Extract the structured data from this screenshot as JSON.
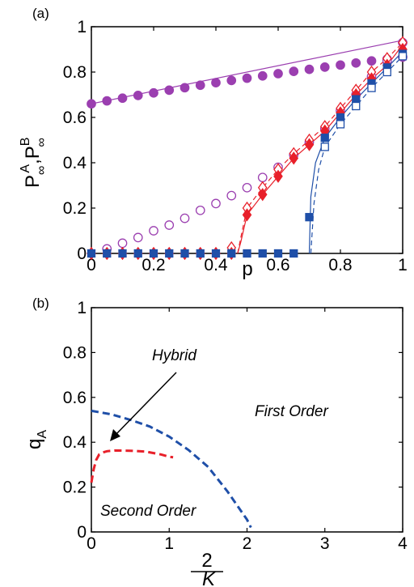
{
  "chart_data": [
    {
      "type": "line",
      "panel_label": "(a)",
      "xlabel": "p",
      "ylabel_main": "P",
      "ylabel_sub1": "∞",
      "ylabel_sup1": "A",
      "ylabel_comma": ",",
      "ylabel_sup2": "B",
      "ylabel_sub2": "∞",
      "xlim": [
        0,
        1
      ],
      "ylim": [
        0,
        1
      ],
      "xticks": [
        "0",
        "0.2",
        "0.4",
        "0.6",
        "0.8",
        "1"
      ],
      "yticks": [
        "0",
        "0.2",
        "0.4",
        "0.6",
        "0.8",
        "1"
      ],
      "colors": {
        "purple": "#9b3fb0",
        "red": "#e8202a",
        "blue": "#1f4fa8"
      },
      "series": [
        {
          "marker": "filled-circle",
          "color": "#9b3fb0",
          "line": "solid",
          "x": [
            0,
            0.05,
            0.1,
            0.15,
            0.2,
            0.25,
            0.3,
            0.35,
            0.4,
            0.45,
            0.5,
            0.55,
            0.6,
            0.65,
            0.7,
            0.75,
            0.8,
            0.85,
            0.9,
            0.95,
            1.0
          ],
          "y": [
            0.66,
            0.673,
            0.685,
            0.697,
            0.708,
            0.72,
            0.731,
            0.742,
            0.753,
            0.763,
            0.773,
            0.783,
            0.793,
            0.803,
            0.812,
            0.822,
            0.831,
            0.84,
            0.849,
            0.857,
            0.866
          ]
        },
        {
          "marker": "open-circle",
          "color": "#9b3fb0",
          "line": "solid",
          "x": [
            0.05,
            0.1,
            0.15,
            0.2,
            0.25,
            0.3,
            0.35,
            0.4,
            0.45,
            0.5,
            0.55,
            0.6,
            0.65,
            0.7,
            0.75,
            0.8,
            0.85,
            0.9,
            0.95,
            1.0
          ],
          "y": [
            0.02,
            0.045,
            0.07,
            0.1,
            0.125,
            0.155,
            0.19,
            0.22,
            0.255,
            0.29,
            0.335,
            0.38,
            0.435,
            0.49,
            0.55,
            0.63,
            0.7,
            0.78,
            0.85,
            0.93
          ]
        },
        {
          "marker": "open-diamond",
          "color": "#e8202a",
          "line": "solid",
          "x": [
            0,
            0.05,
            0.1,
            0.15,
            0.2,
            0.25,
            0.3,
            0.35,
            0.4,
            0.45,
            0.5,
            0.55,
            0.6,
            0.65,
            0.7,
            0.75,
            0.8,
            0.85,
            0.9,
            0.95,
            1.0
          ],
          "y": [
            0,
            0,
            0,
            0,
            0,
            0,
            0,
            0,
            0,
            0.025,
            0.2,
            0.29,
            0.37,
            0.44,
            0.5,
            0.56,
            0.64,
            0.72,
            0.8,
            0.86,
            0.93
          ]
        },
        {
          "marker": "filled-diamond",
          "color": "#e8202a",
          "line": "solid",
          "x": [
            0,
            0.05,
            0.1,
            0.15,
            0.2,
            0.25,
            0.3,
            0.35,
            0.4,
            0.45,
            0.5,
            0.55,
            0.6,
            0.65,
            0.7,
            0.75,
            0.8,
            0.85,
            0.9,
            0.95,
            1.0
          ],
          "y": [
            0,
            0,
            0,
            0,
            0,
            0,
            0,
            0,
            0,
            0,
            0.17,
            0.26,
            0.34,
            0.42,
            0.48,
            0.54,
            0.62,
            0.7,
            0.77,
            0.83,
            0.9
          ]
        },
        {
          "marker": "filled-square",
          "color": "#1f4fa8",
          "line": "solid",
          "x": [
            0,
            0.05,
            0.1,
            0.15,
            0.2,
            0.25,
            0.3,
            0.35,
            0.4,
            0.45,
            0.5,
            0.55,
            0.6,
            0.65,
            0.7,
            0.75,
            0.8,
            0.85,
            0.9,
            0.95,
            1.0
          ],
          "y": [
            0,
            0,
            0,
            0,
            0,
            0,
            0,
            0,
            0,
            0,
            0,
            0,
            0,
            0,
            0.16,
            0.51,
            0.6,
            0.68,
            0.75,
            0.82,
            0.88
          ]
        },
        {
          "marker": "open-square",
          "color": "#1f4fa8",
          "line": "dashed",
          "x": [
            0.75,
            0.8,
            0.85,
            0.9,
            0.95,
            1.0
          ],
          "y": [
            0.47,
            0.57,
            0.65,
            0.73,
            0.8,
            0.87
          ]
        }
      ],
      "curves": [
        {
          "color": "#9b3fb0",
          "dash": false,
          "x": [
            0,
            1
          ],
          "y": [
            0.66,
            0.94
          ]
        },
        {
          "color": "#e8202a",
          "dash": false,
          "x": [
            0.47,
            0.48,
            0.5,
            0.55,
            0.6,
            0.65,
            0.7,
            0.75,
            0.8,
            0.85,
            0.9,
            0.95,
            1.0
          ],
          "y": [
            0,
            0.05,
            0.17,
            0.26,
            0.34,
            0.42,
            0.48,
            0.54,
            0.62,
            0.7,
            0.77,
            0.83,
            0.92
          ]
        },
        {
          "color": "#e8202a",
          "dash": true,
          "x": [
            0.47,
            0.48,
            0.5,
            0.55,
            0.6,
            0.65,
            0.7,
            0.75,
            0.8,
            0.85,
            0.9,
            0.95,
            1.0
          ],
          "y": [
            0,
            0.07,
            0.2,
            0.29,
            0.37,
            0.44,
            0.5,
            0.56,
            0.64,
            0.72,
            0.8,
            0.86,
            0.93
          ]
        },
        {
          "color": "#1f4fa8",
          "dash": false,
          "x": [
            0.7,
            0.705,
            0.72,
            0.75,
            0.8,
            0.85,
            0.9,
            0.95,
            1.0
          ],
          "y": [
            0,
            0.25,
            0.4,
            0.51,
            0.6,
            0.68,
            0.75,
            0.82,
            0.89
          ]
        },
        {
          "color": "#1f4fa8",
          "dash": true,
          "x": [
            0.705,
            0.715,
            0.73,
            0.75,
            0.8,
            0.85,
            0.9,
            0.95,
            1.0
          ],
          "y": [
            0,
            0.22,
            0.37,
            0.47,
            0.57,
            0.65,
            0.73,
            0.8,
            0.87
          ]
        }
      ]
    },
    {
      "type": "line",
      "panel_label": "(b)",
      "xlabel_num": "2",
      "xlabel_den": "K",
      "ylabel_main": "q",
      "ylabel_sub": "A",
      "xlim": [
        0,
        4
      ],
      "ylim": [
        0,
        1
      ],
      "xticks": [
        "0",
        "1",
        "2",
        "3",
        "4"
      ],
      "yticks": [
        "0",
        "0.2",
        "0.4",
        "0.6",
        "0.8",
        "1"
      ],
      "regions": {
        "first_order": "First Order",
        "second_order": "Second Order",
        "hybrid": "Hybrid"
      },
      "colors": {
        "boundary": "#1f4fa8",
        "hybrid_line": "#e8202a"
      },
      "curves": [
        {
          "color": "#1f4fa8",
          "dash": true,
          "x": [
            0,
            0.25,
            0.5,
            0.75,
            1.0,
            1.25,
            1.5,
            1.75,
            2.0,
            2.05
          ],
          "y": [
            0.54,
            0.525,
            0.5,
            0.47,
            0.425,
            0.365,
            0.29,
            0.18,
            0.055,
            0.02
          ]
        },
        {
          "color": "#e8202a",
          "dash": true,
          "x": [
            0,
            0.03,
            0.06,
            0.1,
            0.15,
            0.2,
            0.3,
            0.5,
            0.7,
            0.9,
            1.0,
            1.05
          ],
          "y": [
            0.22,
            0.28,
            0.32,
            0.345,
            0.355,
            0.36,
            0.363,
            0.362,
            0.358,
            0.345,
            0.335,
            0.333
          ]
        }
      ]
    }
  ]
}
